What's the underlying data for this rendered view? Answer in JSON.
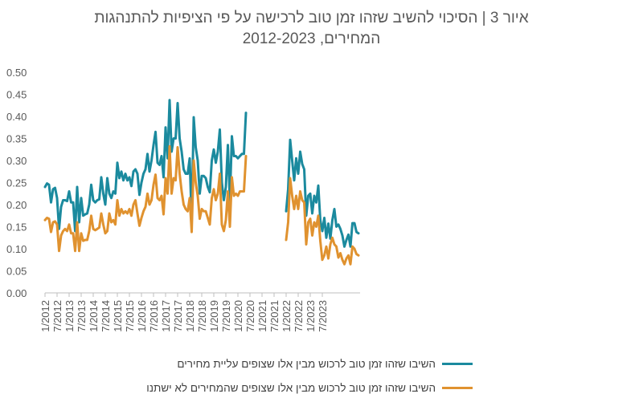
{
  "chart_data": {
    "type": "line",
    "title_line1": "איור 3 | הסיכוי להשיב שזהו זמן טוב לרכישה על פי הציפיות להתנהגות",
    "title_line2": "המחירים, 2012-2023",
    "xlabel": "",
    "ylabel": "",
    "ylim": [
      0,
      0.5
    ],
    "ytick_labels": [
      "0.00",
      "0.05",
      "0.10",
      "0.15",
      "0.20",
      "0.25",
      "0.30",
      "0.35",
      "0.40",
      "0.45",
      "0.50"
    ],
    "xtick_labels": [
      "1/2012",
      "7/2012",
      "1/2013",
      "7/2013",
      "1/2014",
      "7/2014",
      "1/2015",
      "7/2015",
      "1/2016",
      "7/2016",
      "1/2017",
      "7/2017",
      "1/2018",
      "7/2018",
      "1/2019",
      "7/2019",
      "1/2020",
      "7/2020",
      "1/2021",
      "7/2021",
      "1/2022",
      "7/2022",
      "1/2023",
      "7/2023"
    ],
    "x_start": "1/2012",
    "x_end": "12/2023",
    "grid": false,
    "legend_position": "bottom",
    "series": [
      {
        "name": "השיבו שזהו זמן טוב לרכוש מבין אלו שצופים עליית מחירים",
        "color": "#1b8a9e",
        "values": [
          0.24,
          0.248,
          0.245,
          0.205,
          0.235,
          0.238,
          0.215,
          0.145,
          0.195,
          0.21,
          0.21,
          0.208,
          0.23,
          0.205,
          0.205,
          0.14,
          0.24,
          0.16,
          0.215,
          0.175,
          0.178,
          0.18,
          0.2,
          0.245,
          0.21,
          0.205,
          0.21,
          0.212,
          0.262,
          0.225,
          0.2,
          0.26,
          0.225,
          0.215,
          0.23,
          0.225,
          0.295,
          0.26,
          0.275,
          0.255,
          0.27,
          0.255,
          0.262,
          0.242,
          0.275,
          0.28,
          0.27,
          0.222,
          0.25,
          0.27,
          0.28,
          0.315,
          0.275,
          0.3,
          0.335,
          0.365,
          0.295,
          0.29,
          0.31,
          0.262,
          0.375,
          0.305,
          0.437,
          0.32,
          0.35,
          0.35,
          0.43,
          0.35,
          0.32,
          0.28,
          0.27,
          0.27,
          0.305,
          0.162,
          0.398,
          0.33,
          0.3,
          0.225,
          0.265,
          0.265,
          0.26,
          0.24,
          0.228,
          0.3,
          0.325,
          0.295,
          0.32,
          0.37,
          0.25,
          0.21,
          0.24,
          0.335,
          0.21,
          0.355,
          0.31,
          0.31,
          0.305,
          0.31,
          0.315,
          0.315,
          0.408,
          null,
          null,
          null,
          null,
          null,
          null,
          null,
          null,
          null,
          null,
          null,
          null,
          null,
          null,
          null,
          null,
          null,
          null,
          null,
          0.185,
          0.235,
          0.347,
          0.3,
          0.255,
          0.305,
          0.27,
          0.32,
          0.292,
          0.28,
          0.175,
          0.22,
          0.225,
          0.18,
          0.22,
          0.205,
          0.243,
          0.165,
          0.14,
          0.17,
          0.125,
          0.157,
          0.123,
          0.165,
          0.19,
          0.15,
          0.155,
          0.145,
          0.13,
          0.105,
          0.12,
          0.132,
          0.105,
          0.158,
          0.158,
          0.138,
          0.135
        ]
      },
      {
        "name": "השיבו שזהו זמן טוב לרכוש מבין אלו שצופים שהמחירים לא ישתנו",
        "color": "#e0922f",
        "values": [
          0.165,
          0.17,
          0.168,
          0.138,
          0.16,
          0.162,
          0.155,
          0.095,
          0.13,
          0.14,
          0.145,
          0.14,
          0.155,
          0.135,
          0.135,
          0.095,
          0.16,
          0.095,
          0.135,
          0.118,
          0.12,
          0.12,
          0.14,
          0.175,
          0.145,
          0.142,
          0.145,
          0.148,
          0.18,
          0.155,
          0.135,
          0.14,
          0.18,
          0.16,
          0.165,
          0.155,
          0.21,
          0.175,
          0.19,
          0.18,
          0.185,
          0.18,
          0.19,
          0.175,
          0.2,
          0.21,
          0.18,
          0.152,
          0.17,
          0.185,
          0.195,
          0.225,
          0.2,
          0.21,
          0.245,
          0.268,
          0.215,
          0.21,
          0.22,
          0.178,
          0.26,
          0.225,
          0.332,
          0.225,
          0.26,
          0.255,
          0.33,
          0.27,
          0.23,
          0.2,
          0.19,
          0.185,
          0.215,
          0.138,
          0.3,
          0.25,
          0.22,
          0.168,
          0.19,
          0.185,
          0.185,
          0.17,
          0.155,
          0.215,
          0.235,
          0.21,
          0.225,
          0.27,
          0.155,
          0.14,
          0.165,
          0.23,
          0.15,
          0.262,
          0.22,
          0.225,
          0.22,
          0.23,
          0.23,
          0.23,
          0.31,
          null,
          null,
          null,
          null,
          null,
          null,
          null,
          null,
          null,
          null,
          null,
          null,
          null,
          null,
          null,
          null,
          null,
          null,
          null,
          0.12,
          0.16,
          0.26,
          0.22,
          0.19,
          0.22,
          0.19,
          0.23,
          0.21,
          0.205,
          0.11,
          0.16,
          0.168,
          0.13,
          0.16,
          0.15,
          0.175,
          0.118,
          0.075,
          0.085,
          0.105,
          0.078,
          0.11,
          0.125,
          0.11,
          0.105,
          0.08,
          0.09,
          0.075,
          0.065,
          0.078,
          0.085,
          0.065,
          0.105,
          0.1,
          0.088,
          0.085
        ]
      }
    ]
  }
}
